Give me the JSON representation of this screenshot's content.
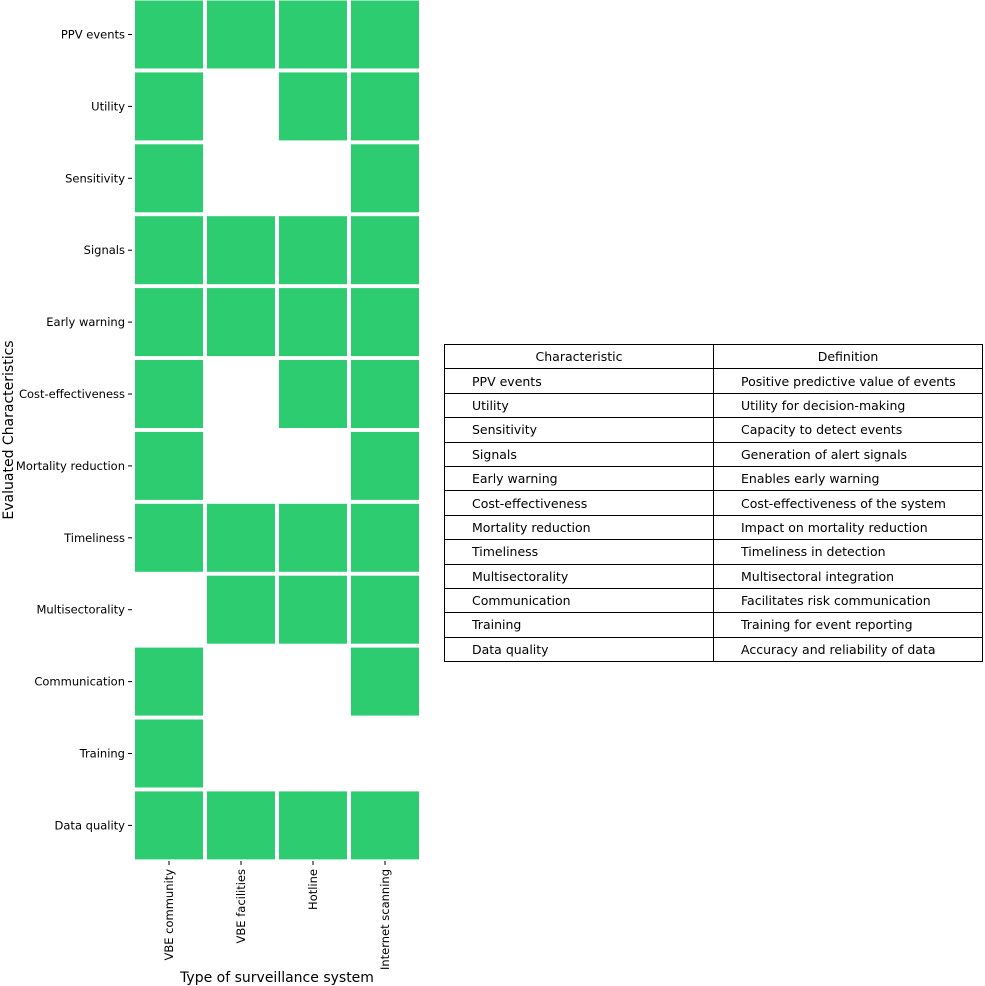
{
  "chart_data": {
    "type": "heatmap",
    "xlabel": "Type of surveillance system",
    "ylabel": "Evaluated Characteristics",
    "x_categories": [
      "VBE community",
      "VBE facilities",
      "Hotline",
      "Internet scanning"
    ],
    "y_categories": [
      "PPV events",
      "Utility",
      "Sensitivity",
      "Signals",
      "Early warning",
      "Cost-effectiveness",
      "Mortality reduction",
      "Timeliness",
      "Multisectorality",
      "Communication",
      "Training",
      "Data quality"
    ],
    "values": [
      [
        1,
        1,
        1,
        1
      ],
      [
        1,
        0,
        1,
        1
      ],
      [
        1,
        0,
        0,
        1
      ],
      [
        1,
        1,
        1,
        1
      ],
      [
        1,
        1,
        1,
        1
      ],
      [
        1,
        0,
        1,
        1
      ],
      [
        1,
        0,
        0,
        1
      ],
      [
        1,
        1,
        1,
        1
      ],
      [
        0,
        1,
        1,
        1
      ],
      [
        1,
        0,
        0,
        1
      ],
      [
        1,
        0,
        0,
        0
      ],
      [
        1,
        1,
        1,
        1
      ]
    ],
    "colors": {
      "present": "#2ecc71",
      "absent": "#ffffff"
    },
    "grid": false
  },
  "table": {
    "headers": [
      "Characteristic",
      "Definition"
    ],
    "rows": [
      [
        "PPV events",
        "Positive predictive value of events"
      ],
      [
        "Utility",
        "Utility for decision-making"
      ],
      [
        "Sensitivity",
        "Capacity to detect events"
      ],
      [
        "Signals",
        "Generation of alert signals"
      ],
      [
        "Early warning",
        "Enables early warning"
      ],
      [
        "Cost-effectiveness",
        "Cost-effectiveness of the system"
      ],
      [
        "Mortality reduction",
        "Impact on mortality reduction"
      ],
      [
        "Timeliness",
        "Timeliness in detection"
      ],
      [
        "Multisectorality",
        "Multisectoral integration"
      ],
      [
        "Communication",
        "Facilitates risk communication"
      ],
      [
        "Training",
        "Training for event reporting"
      ],
      [
        "Data quality",
        "Accuracy and reliability of data"
      ]
    ]
  }
}
